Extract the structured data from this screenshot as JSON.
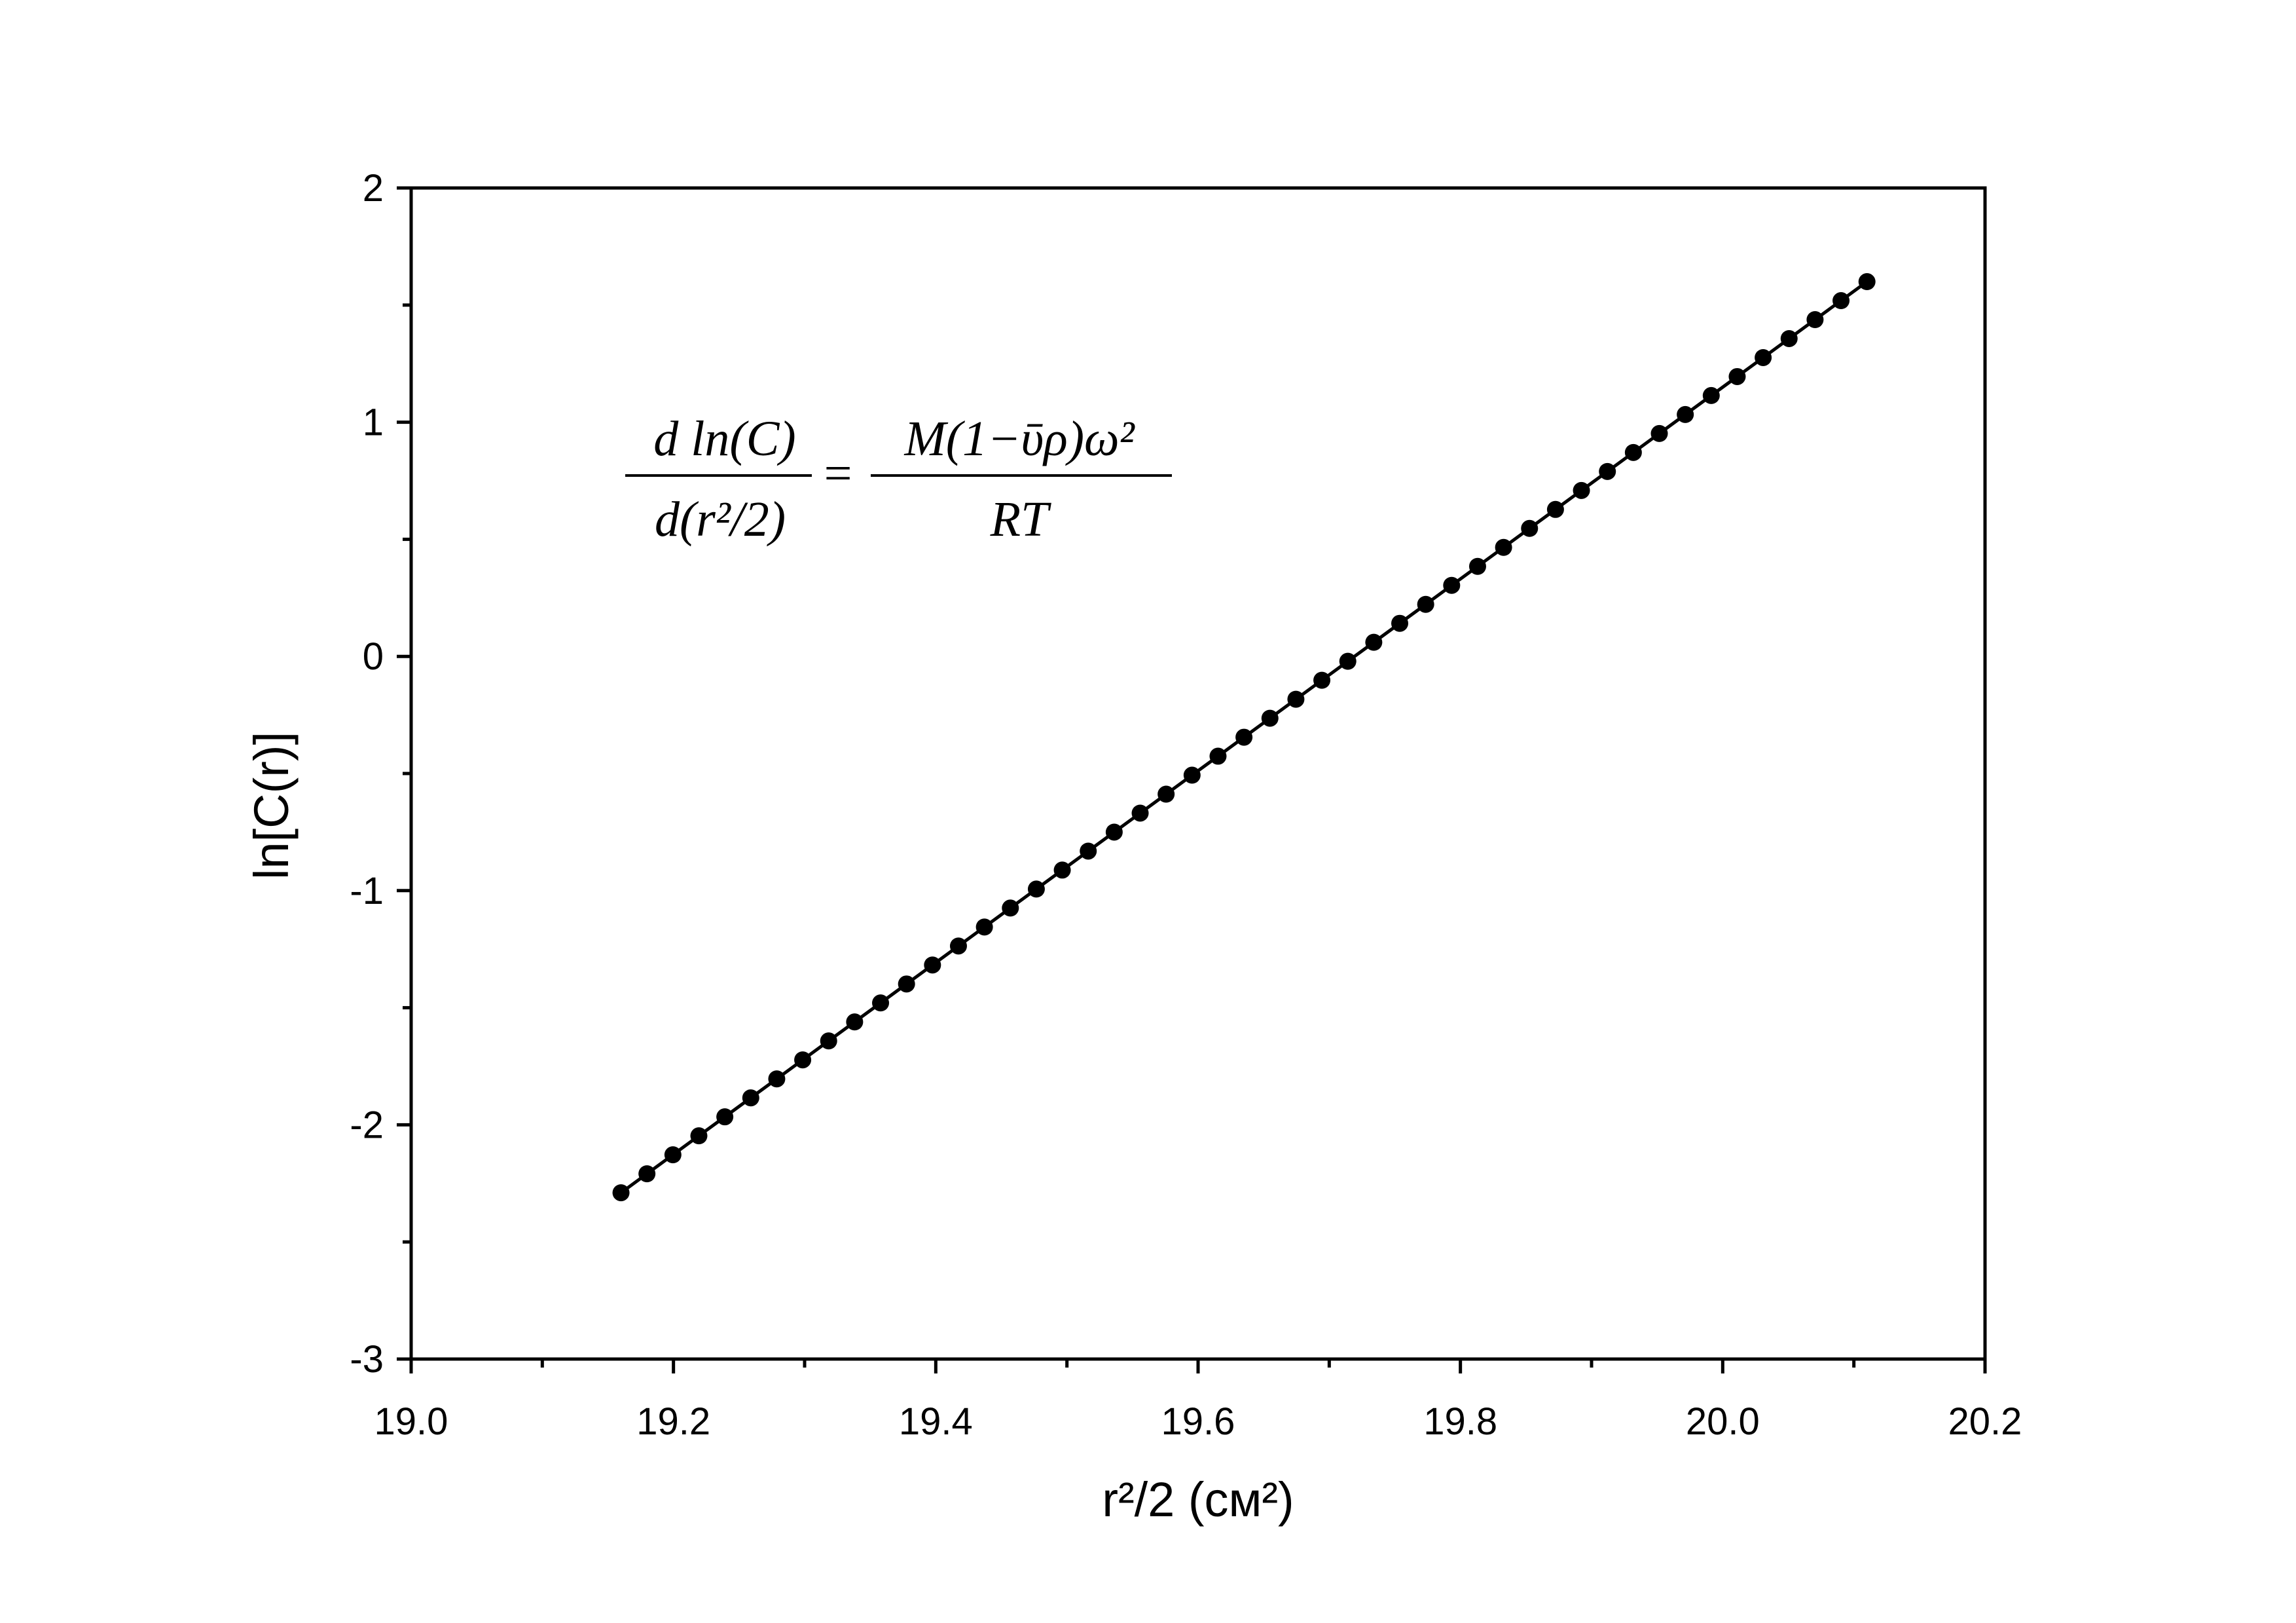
{
  "chart_data": {
    "type": "scatter",
    "xlabel": "r²/2 (см²)",
    "ylabel": "ln[C(r)]",
    "xlim": [
      19.0,
      20.2
    ],
    "ylim": [
      -3,
      2
    ],
    "x_ticks": [
      "19.0",
      "19.2",
      "19.4",
      "19.6",
      "19.8",
      "20.0",
      "20.2"
    ],
    "y_ticks": [
      "2",
      "1",
      "0",
      "-1",
      "-2",
      "-3"
    ],
    "grid": false,
    "legend": "none",
    "series": [
      {
        "style": "line-with-markers",
        "color": "#000000",
        "x_start": 19.16,
        "x_end": 20.11,
        "y_start": -2.29,
        "y_end": 1.6,
        "n_points": 49
      }
    ],
    "annotation": {
      "lhs_num": "d ln(C)",
      "lhs_den": "d(r²/2)",
      "rhs_num": "M(1−ῡρ)ω²",
      "rhs_den": "RT"
    }
  }
}
